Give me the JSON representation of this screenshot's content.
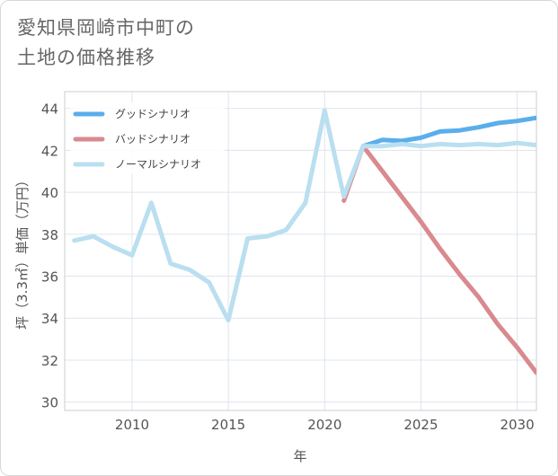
{
  "chart_data": {
    "type": "line",
    "title_lines": [
      "愛知県岡崎市中町の",
      "土地の価格推移"
    ],
    "xlabel": "年",
    "ylabel": "坪（3.3㎡）単価（万円）",
    "xlim": [
      2006.5,
      2031
    ],
    "ylim": [
      29.6,
      44.8
    ],
    "x_ticks": [
      2010,
      2015,
      2020,
      2025,
      2030
    ],
    "y_ticks": [
      30,
      32,
      34,
      36,
      38,
      40,
      42,
      44
    ],
    "grid": true,
    "legend_position": "top-left",
    "series": [
      {
        "name": "グッドシナリオ",
        "color": "#5aaeeb",
        "x": [
          2022,
          2023,
          2024,
          2025,
          2026,
          2027,
          2028,
          2029,
          2030,
          2031
        ],
        "values": [
          42.2,
          42.5,
          42.45,
          42.6,
          42.9,
          42.95,
          43.1,
          43.3,
          43.4,
          43.55
        ]
      },
      {
        "name": "バッドシナリオ",
        "color": "#d98a8f",
        "x": [
          2021,
          2022,
          2023,
          2024,
          2025,
          2026,
          2027,
          2028,
          2029,
          2030,
          2031
        ],
        "values": [
          39.6,
          42.2,
          41.0,
          39.8,
          38.6,
          37.3,
          36.1,
          35.0,
          33.7,
          32.6,
          31.4
        ]
      },
      {
        "name": "ノーマルシナリオ",
        "color": "#b9dff0",
        "x": [
          2007,
          2008,
          2009,
          2010,
          2011,
          2012,
          2013,
          2014,
          2015,
          2016,
          2017,
          2018,
          2019,
          2020,
          2021,
          2022,
          2023,
          2024,
          2025,
          2026,
          2027,
          2028,
          2029,
          2030,
          2031
        ],
        "values": [
          37.7,
          37.9,
          37.4,
          37.0,
          39.5,
          36.6,
          36.3,
          35.7,
          33.9,
          37.8,
          37.9,
          38.2,
          39.5,
          43.9,
          39.8,
          42.2,
          42.2,
          42.3,
          42.2,
          42.3,
          42.25,
          42.3,
          42.25,
          42.35,
          42.25
        ]
      }
    ]
  }
}
